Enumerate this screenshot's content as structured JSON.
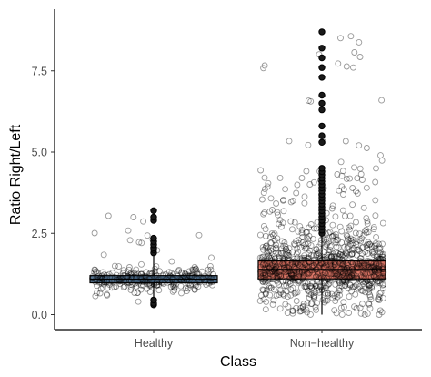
{
  "chart_data": {
    "type": "box",
    "title": "",
    "xlabel": "Class",
    "ylabel": "Ratio Right/Left",
    "ylim": [
      -0.25,
      9.3
    ],
    "yticks": [
      0.0,
      2.5,
      5.0,
      7.5
    ],
    "ytick_labels": [
      "0.0",
      "2.5",
      "5.0",
      "7.5"
    ],
    "grid": false,
    "legend": "none",
    "categories": [
      "Healthy",
      "Non−healthy"
    ],
    "boxes": [
      {
        "name": "Healthy",
        "color": "#3a5a7a",
        "q1": 0.98,
        "median": 1.08,
        "q3": 1.2,
        "whisker_low": 0.4,
        "whisker_high": 1.8,
        "outliers": [
          0.3,
          0.35,
          0.45,
          1.9,
          2.0,
          2.05,
          2.15,
          2.25,
          2.35,
          2.9,
          3.0,
          3.2
        ],
        "jitter_count": 260
      },
      {
        "name": "Non−healthy",
        "color": "#e06a58",
        "q1": 1.1,
        "median": 1.38,
        "q3": 1.65,
        "whisker_low": 0.0,
        "whisker_high": 2.4,
        "outliers": [
          2.5,
          2.6,
          2.7,
          2.8,
          2.9,
          3.0,
          3.1,
          3.2,
          3.3,
          3.4,
          3.5,
          3.6,
          3.7,
          3.8,
          3.9,
          4.0,
          4.1,
          4.2,
          4.3,
          4.4,
          4.5,
          5.3,
          5.5,
          5.8,
          6.3,
          6.5,
          6.75,
          7.3,
          7.6,
          7.9,
          8.2,
          8.7
        ],
        "jitter_count": 900
      }
    ]
  }
}
